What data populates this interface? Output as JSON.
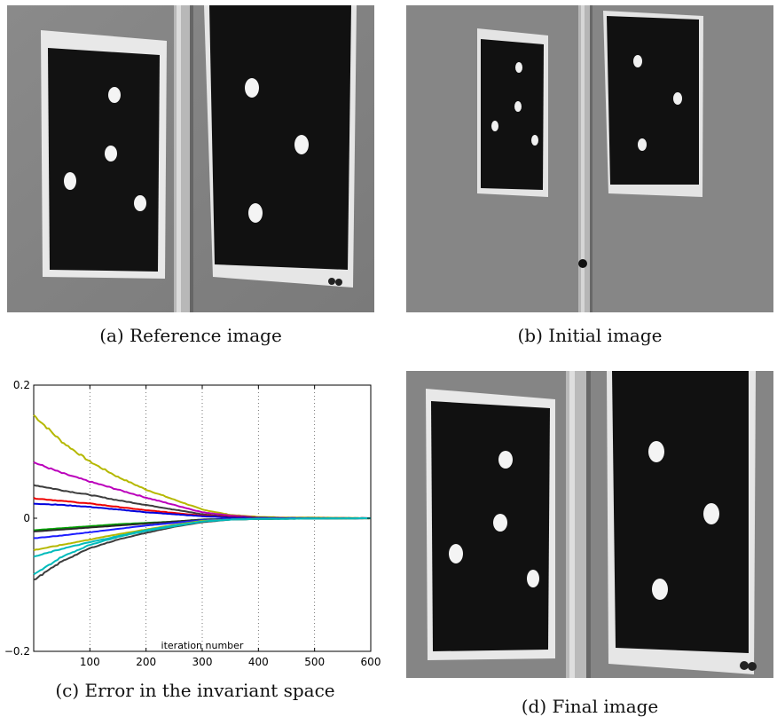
{
  "figure": {
    "panels": [
      {
        "id": "a",
        "caption": "(a) Reference image"
      },
      {
        "id": "b",
        "caption": "(b) Initial image"
      },
      {
        "id": "c",
        "caption": "(c) Error in the invariant space"
      },
      {
        "id": "d",
        "caption": "(d) Final image"
      }
    ]
  },
  "chart_data": {
    "type": "line",
    "title": "",
    "xlabel": "iteration number",
    "ylabel": "",
    "xlim": [
      0,
      600
    ],
    "ylim": [
      -0.2,
      0.2
    ],
    "x_ticks": [
      100,
      200,
      300,
      400,
      500,
      600
    ],
    "y_ticks": [
      -0.2,
      0,
      0.2
    ],
    "y_tick_labels": [
      "−0.2",
      "0",
      "0.2"
    ],
    "grid": "vertical-dotted",
    "series": [
      {
        "color": "#b5b800",
        "values": [
          [
            0,
            0.155
          ],
          [
            50,
            0.115
          ],
          [
            100,
            0.085
          ],
          [
            150,
            0.062
          ],
          [
            200,
            0.043
          ],
          [
            250,
            0.028
          ],
          [
            300,
            0.013
          ],
          [
            350,
            0.005
          ],
          [
            400,
            0.002
          ],
          [
            450,
            0.001
          ],
          [
            500,
            0.001
          ],
          [
            600,
            0.0
          ]
        ]
      },
      {
        "color": "#bb00bb",
        "values": [
          [
            0,
            0.084
          ],
          [
            50,
            0.068
          ],
          [
            100,
            0.055
          ],
          [
            150,
            0.043
          ],
          [
            200,
            0.031
          ],
          [
            250,
            0.02
          ],
          [
            300,
            0.009
          ],
          [
            350,
            0.004
          ],
          [
            400,
            0.001
          ],
          [
            450,
            0.0
          ],
          [
            600,
            0.0
          ]
        ]
      },
      {
        "color": "#3d3d3d",
        "values": [
          [
            0,
            0.05
          ],
          [
            50,
            0.042
          ],
          [
            100,
            0.035
          ],
          [
            150,
            0.027
          ],
          [
            200,
            0.02
          ],
          [
            250,
            0.013
          ],
          [
            300,
            0.006
          ],
          [
            350,
            0.002
          ],
          [
            400,
            0.001
          ],
          [
            450,
            0.0
          ],
          [
            600,
            0.0
          ]
        ]
      },
      {
        "color": "#ee0000",
        "values": [
          [
            0,
            0.03
          ],
          [
            50,
            0.026
          ],
          [
            100,
            0.022
          ],
          [
            150,
            0.017
          ],
          [
            200,
            0.012
          ],
          [
            250,
            0.008
          ],
          [
            300,
            0.004
          ],
          [
            350,
            0.002
          ],
          [
            400,
            0.0
          ],
          [
            600,
            0.0
          ]
        ]
      },
      {
        "color": "#0000dd",
        "values": [
          [
            0,
            0.022
          ],
          [
            50,
            0.02
          ],
          [
            100,
            0.017
          ],
          [
            150,
            0.013
          ],
          [
            200,
            0.009
          ],
          [
            250,
            0.006
          ],
          [
            300,
            0.003
          ],
          [
            350,
            0.001
          ],
          [
            400,
            0.0
          ],
          [
            600,
            0.0
          ]
        ]
      },
      {
        "color": "#00a000",
        "values": [
          [
            0,
            -0.018
          ],
          [
            50,
            -0.015
          ],
          [
            100,
            -0.012
          ],
          [
            150,
            -0.009
          ],
          [
            200,
            -0.007
          ],
          [
            250,
            -0.005
          ],
          [
            300,
            -0.002
          ],
          [
            350,
            -0.001
          ],
          [
            400,
            0.0
          ],
          [
            600,
            0.0
          ]
        ]
      },
      {
        "color": "#2a2a2a",
        "values": [
          [
            0,
            -0.02
          ],
          [
            50,
            -0.017
          ],
          [
            100,
            -0.014
          ],
          [
            150,
            -0.011
          ],
          [
            200,
            -0.008
          ],
          [
            250,
            -0.005
          ],
          [
            300,
            -0.002
          ],
          [
            350,
            -0.001
          ],
          [
            400,
            0.0
          ],
          [
            600,
            0.0
          ]
        ]
      },
      {
        "color": "#1d1dff",
        "values": [
          [
            0,
            -0.03
          ],
          [
            50,
            -0.026
          ],
          [
            100,
            -0.021
          ],
          [
            150,
            -0.016
          ],
          [
            200,
            -0.011
          ],
          [
            250,
            -0.007
          ],
          [
            300,
            -0.003
          ],
          [
            350,
            -0.001
          ],
          [
            400,
            0.0
          ],
          [
            600,
            0.0
          ]
        ]
      },
      {
        "color": "#b5b800",
        "values": [
          [
            0,
            -0.048
          ],
          [
            50,
            -0.04
          ],
          [
            100,
            -0.032
          ],
          [
            150,
            -0.024
          ],
          [
            200,
            -0.017
          ],
          [
            250,
            -0.01
          ],
          [
            300,
            -0.004
          ],
          [
            350,
            -0.002
          ],
          [
            400,
            -0.001
          ],
          [
            600,
            0.0
          ]
        ]
      },
      {
        "color": "#00bbbb",
        "values": [
          [
            0,
            -0.058
          ],
          [
            50,
            -0.046
          ],
          [
            100,
            -0.036
          ],
          [
            150,
            -0.027
          ],
          [
            200,
            -0.018
          ],
          [
            250,
            -0.011
          ],
          [
            300,
            -0.005
          ],
          [
            350,
            -0.002
          ],
          [
            400,
            -0.001
          ],
          [
            600,
            0.0
          ]
        ]
      },
      {
        "color": "#3d3d3d",
        "values": [
          [
            0,
            -0.093
          ],
          [
            50,
            -0.065
          ],
          [
            100,
            -0.045
          ],
          [
            150,
            -0.032
          ],
          [
            200,
            -0.022
          ],
          [
            250,
            -0.013
          ],
          [
            300,
            -0.006
          ],
          [
            350,
            -0.002
          ],
          [
            400,
            -0.001
          ],
          [
            600,
            0.0
          ]
        ]
      },
      {
        "color": "#00bbbb",
        "values": [
          [
            0,
            -0.085
          ],
          [
            50,
            -0.058
          ],
          [
            100,
            -0.04
          ],
          [
            150,
            -0.028
          ],
          [
            200,
            -0.019
          ],
          [
            250,
            -0.012
          ],
          [
            300,
            -0.005
          ],
          [
            350,
            -0.002
          ],
          [
            400,
            -0.001
          ],
          [
            600,
            0.0
          ]
        ]
      }
    ]
  }
}
